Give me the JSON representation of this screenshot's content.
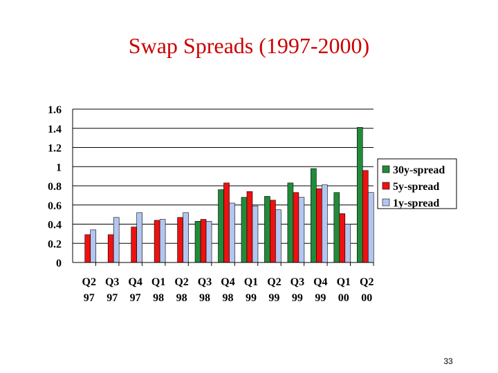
{
  "slide": {
    "page_number": "33"
  },
  "chart_data": {
    "type": "bar",
    "title": "Swap Spreads (1997-2000)",
    "xlabel": "",
    "ylabel": "",
    "ylim": [
      0,
      1.6
    ],
    "yticks": [
      "0",
      "0.2",
      "0.4",
      "0.6",
      "0.8",
      "1",
      "1.2",
      "1.4",
      "1.6"
    ],
    "grid": true,
    "legend_position": "right",
    "categories": [
      [
        "Q2",
        "97"
      ],
      [
        "Q3",
        "97"
      ],
      [
        "Q4",
        "97"
      ],
      [
        "Q1",
        "98"
      ],
      [
        "Q2",
        "98"
      ],
      [
        "Q3",
        "98"
      ],
      [
        "Q4",
        "98"
      ],
      [
        "Q1",
        "99"
      ],
      [
        "Q2",
        "99"
      ],
      [
        "Q3",
        "99"
      ],
      [
        "Q4",
        "99"
      ],
      [
        "Q1",
        "00"
      ],
      [
        "Q2",
        "00"
      ]
    ],
    "series": [
      {
        "name": "30y-spread",
        "color": "#228B3B",
        "values": [
          null,
          null,
          null,
          null,
          null,
          0.43,
          0.76,
          0.68,
          0.69,
          0.83,
          0.98,
          0.73,
          1.41
        ]
      },
      {
        "name": "5y-spread",
        "color": "#ee1111",
        "values": [
          0.29,
          0.29,
          0.37,
          0.44,
          0.47,
          0.45,
          0.83,
          0.74,
          0.65,
          0.73,
          0.77,
          0.51,
          0.96
        ]
      },
      {
        "name": "1y-spread",
        "color": "#b3c6f0",
        "values": [
          0.34,
          0.47,
          0.52,
          0.45,
          0.52,
          0.43,
          0.62,
          0.59,
          0.55,
          0.68,
          0.81,
          0.4,
          0.73
        ]
      }
    ]
  }
}
